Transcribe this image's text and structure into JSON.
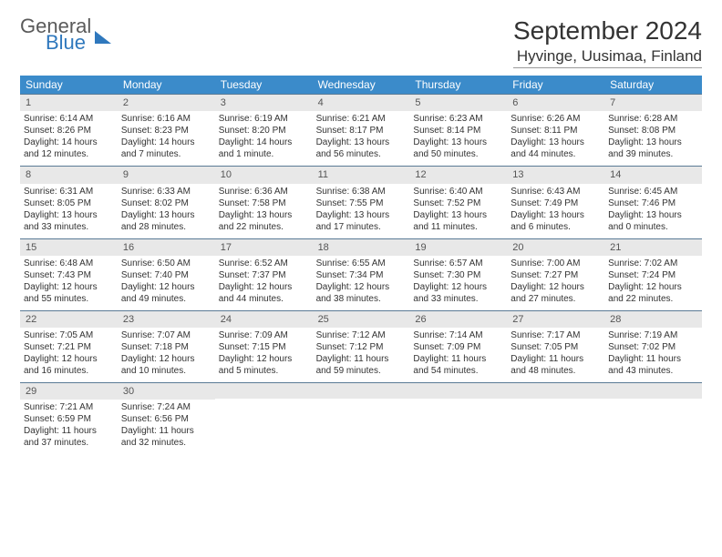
{
  "logo": {
    "general": "General",
    "blue": "Blue"
  },
  "header": {
    "month_title": "September 2024",
    "location": "Hyvinge, Uusimaa, Finland"
  },
  "weekdays": [
    "Sunday",
    "Monday",
    "Tuesday",
    "Wednesday",
    "Thursday",
    "Friday",
    "Saturday"
  ],
  "colors": {
    "header_bg": "#3b8bca",
    "daynum_bg": "#e8e8e8",
    "rule": "#5a7a95"
  },
  "weeks": [
    [
      {
        "n": "1",
        "sr": "Sunrise: 6:14 AM",
        "ss": "Sunset: 8:26 PM",
        "d1": "Daylight: 14 hours",
        "d2": "and 12 minutes."
      },
      {
        "n": "2",
        "sr": "Sunrise: 6:16 AM",
        "ss": "Sunset: 8:23 PM",
        "d1": "Daylight: 14 hours",
        "d2": "and 7 minutes."
      },
      {
        "n": "3",
        "sr": "Sunrise: 6:19 AM",
        "ss": "Sunset: 8:20 PM",
        "d1": "Daylight: 14 hours",
        "d2": "and 1 minute."
      },
      {
        "n": "4",
        "sr": "Sunrise: 6:21 AM",
        "ss": "Sunset: 8:17 PM",
        "d1": "Daylight: 13 hours",
        "d2": "and 56 minutes."
      },
      {
        "n": "5",
        "sr": "Sunrise: 6:23 AM",
        "ss": "Sunset: 8:14 PM",
        "d1": "Daylight: 13 hours",
        "d2": "and 50 minutes."
      },
      {
        "n": "6",
        "sr": "Sunrise: 6:26 AM",
        "ss": "Sunset: 8:11 PM",
        "d1": "Daylight: 13 hours",
        "d2": "and 44 minutes."
      },
      {
        "n": "7",
        "sr": "Sunrise: 6:28 AM",
        "ss": "Sunset: 8:08 PM",
        "d1": "Daylight: 13 hours",
        "d2": "and 39 minutes."
      }
    ],
    [
      {
        "n": "8",
        "sr": "Sunrise: 6:31 AM",
        "ss": "Sunset: 8:05 PM",
        "d1": "Daylight: 13 hours",
        "d2": "and 33 minutes."
      },
      {
        "n": "9",
        "sr": "Sunrise: 6:33 AM",
        "ss": "Sunset: 8:02 PM",
        "d1": "Daylight: 13 hours",
        "d2": "and 28 minutes."
      },
      {
        "n": "10",
        "sr": "Sunrise: 6:36 AM",
        "ss": "Sunset: 7:58 PM",
        "d1": "Daylight: 13 hours",
        "d2": "and 22 minutes."
      },
      {
        "n": "11",
        "sr": "Sunrise: 6:38 AM",
        "ss": "Sunset: 7:55 PM",
        "d1": "Daylight: 13 hours",
        "d2": "and 17 minutes."
      },
      {
        "n": "12",
        "sr": "Sunrise: 6:40 AM",
        "ss": "Sunset: 7:52 PM",
        "d1": "Daylight: 13 hours",
        "d2": "and 11 minutes."
      },
      {
        "n": "13",
        "sr": "Sunrise: 6:43 AM",
        "ss": "Sunset: 7:49 PM",
        "d1": "Daylight: 13 hours",
        "d2": "and 6 minutes."
      },
      {
        "n": "14",
        "sr": "Sunrise: 6:45 AM",
        "ss": "Sunset: 7:46 PM",
        "d1": "Daylight: 13 hours",
        "d2": "and 0 minutes."
      }
    ],
    [
      {
        "n": "15",
        "sr": "Sunrise: 6:48 AM",
        "ss": "Sunset: 7:43 PM",
        "d1": "Daylight: 12 hours",
        "d2": "and 55 minutes."
      },
      {
        "n": "16",
        "sr": "Sunrise: 6:50 AM",
        "ss": "Sunset: 7:40 PM",
        "d1": "Daylight: 12 hours",
        "d2": "and 49 minutes."
      },
      {
        "n": "17",
        "sr": "Sunrise: 6:52 AM",
        "ss": "Sunset: 7:37 PM",
        "d1": "Daylight: 12 hours",
        "d2": "and 44 minutes."
      },
      {
        "n": "18",
        "sr": "Sunrise: 6:55 AM",
        "ss": "Sunset: 7:34 PM",
        "d1": "Daylight: 12 hours",
        "d2": "and 38 minutes."
      },
      {
        "n": "19",
        "sr": "Sunrise: 6:57 AM",
        "ss": "Sunset: 7:30 PM",
        "d1": "Daylight: 12 hours",
        "d2": "and 33 minutes."
      },
      {
        "n": "20",
        "sr": "Sunrise: 7:00 AM",
        "ss": "Sunset: 7:27 PM",
        "d1": "Daylight: 12 hours",
        "d2": "and 27 minutes."
      },
      {
        "n": "21",
        "sr": "Sunrise: 7:02 AM",
        "ss": "Sunset: 7:24 PM",
        "d1": "Daylight: 12 hours",
        "d2": "and 22 minutes."
      }
    ],
    [
      {
        "n": "22",
        "sr": "Sunrise: 7:05 AM",
        "ss": "Sunset: 7:21 PM",
        "d1": "Daylight: 12 hours",
        "d2": "and 16 minutes."
      },
      {
        "n": "23",
        "sr": "Sunrise: 7:07 AM",
        "ss": "Sunset: 7:18 PM",
        "d1": "Daylight: 12 hours",
        "d2": "and 10 minutes."
      },
      {
        "n": "24",
        "sr": "Sunrise: 7:09 AM",
        "ss": "Sunset: 7:15 PM",
        "d1": "Daylight: 12 hours",
        "d2": "and 5 minutes."
      },
      {
        "n": "25",
        "sr": "Sunrise: 7:12 AM",
        "ss": "Sunset: 7:12 PM",
        "d1": "Daylight: 11 hours",
        "d2": "and 59 minutes."
      },
      {
        "n": "26",
        "sr": "Sunrise: 7:14 AM",
        "ss": "Sunset: 7:09 PM",
        "d1": "Daylight: 11 hours",
        "d2": "and 54 minutes."
      },
      {
        "n": "27",
        "sr": "Sunrise: 7:17 AM",
        "ss": "Sunset: 7:05 PM",
        "d1": "Daylight: 11 hours",
        "d2": "and 48 minutes."
      },
      {
        "n": "28",
        "sr": "Sunrise: 7:19 AM",
        "ss": "Sunset: 7:02 PM",
        "d1": "Daylight: 11 hours",
        "d2": "and 43 minutes."
      }
    ],
    [
      {
        "n": "29",
        "sr": "Sunrise: 7:21 AM",
        "ss": "Sunset: 6:59 PM",
        "d1": "Daylight: 11 hours",
        "d2": "and 37 minutes."
      },
      {
        "n": "30",
        "sr": "Sunrise: 7:24 AM",
        "ss": "Sunset: 6:56 PM",
        "d1": "Daylight: 11 hours",
        "d2": "and 32 minutes."
      },
      null,
      null,
      null,
      null,
      null
    ]
  ]
}
